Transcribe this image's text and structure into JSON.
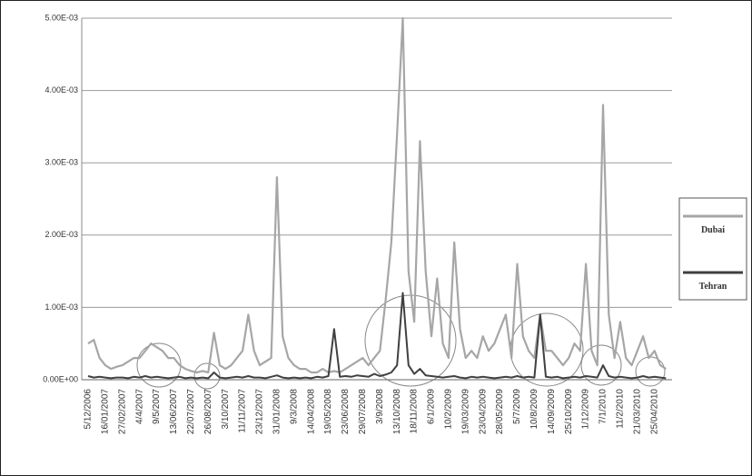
{
  "chart_data": {
    "type": "line",
    "categories": [
      "5/12/2006",
      null,
      null,
      "16/01/2007",
      null,
      null,
      "27/02/2007",
      null,
      null,
      "4/4/2007",
      null,
      null,
      "9/5/2007",
      null,
      null,
      "13/06/2007",
      null,
      null,
      "22/07/2007",
      null,
      null,
      "26/08/2007",
      null,
      null,
      "3/10/2007",
      null,
      null,
      "11/11/2007",
      null,
      null,
      "23/12/2007",
      null,
      null,
      "31/01/2008",
      null,
      null,
      "9/3/2008",
      null,
      null,
      "14/04/2008",
      null,
      null,
      "19/05/2008",
      null,
      null,
      "23/06/2008",
      null,
      null,
      "29/07/2008",
      null,
      null,
      "3/9/2008",
      null,
      null,
      "13/10/2008",
      null,
      null,
      "18/11/2008",
      null,
      null,
      "6/1/2009",
      null,
      null,
      "10/2/2009",
      null,
      null,
      "19/03/2009",
      null,
      null,
      "23/04/2009",
      null,
      null,
      "28/05/2009",
      null,
      null,
      "5/7/2009",
      null,
      null,
      "10/8/2009",
      null,
      null,
      "14/09/2009",
      null,
      null,
      "25/10/2009",
      null,
      null,
      "1/12/2009",
      null,
      null,
      "7/1/2010",
      null,
      null,
      "11/2/2010",
      null,
      null,
      "21/03/2010",
      null,
      null,
      "25/04/2010",
      null,
      null
    ],
    "series": [
      {
        "name": "Dubai",
        "color": "#a6a6a6",
        "values": [
          0.0005,
          0.00055,
          0.0003,
          0.0002,
          0.00015,
          0.00018,
          0.0002,
          0.00025,
          0.0003,
          0.0003,
          0.0004,
          0.0005,
          0.00045,
          0.0004,
          0.0003,
          0.0003,
          0.0002,
          0.00015,
          0.00012,
          0.0001,
          0.00012,
          0.0001,
          0.00065,
          0.0002,
          0.00015,
          0.0002,
          0.0003,
          0.0004,
          0.0009,
          0.0004,
          0.0002,
          0.00025,
          0.0003,
          0.0028,
          0.0006,
          0.0003,
          0.0002,
          0.00015,
          0.00015,
          0.0001,
          0.0001,
          0.00015,
          0.0001,
          0.00012,
          0.0001,
          0.00015,
          0.0002,
          0.00025,
          0.0003,
          0.0002,
          0.0003,
          0.0004,
          0.0011,
          0.0019,
          0.0034,
          0.005,
          0.0015,
          0.0008,
          0.0033,
          0.0015,
          0.0006,
          0.0014,
          0.0005,
          0.0003,
          0.0019,
          0.0007,
          0.0003,
          0.0004,
          0.0003,
          0.0006,
          0.0004,
          0.0005,
          0.0007,
          0.0009,
          0.0003,
          0.0016,
          0.0006,
          0.0004,
          0.0003,
          0.0009,
          0.0004,
          0.0004,
          0.0003,
          0.0002,
          0.0003,
          0.0005,
          0.0004,
          0.0016,
          0.0004,
          0.0002,
          0.0038,
          0.0009,
          0.0003,
          0.0008,
          0.0003,
          0.0002,
          0.0004,
          0.0006,
          0.0003,
          0.0004,
          0.0002,
          0.00015
        ]
      },
      {
        "name": "Tehran",
        "color": "#404040",
        "values": [
          5e-05,
          3e-05,
          4e-05,
          3e-05,
          2e-05,
          3e-05,
          3e-05,
          2e-05,
          4e-05,
          3e-05,
          5e-05,
          3e-05,
          4e-05,
          3e-05,
          2e-05,
          3e-05,
          4e-05,
          2e-05,
          3e-05,
          2e-05,
          3e-05,
          2e-05,
          0.0001,
          3e-05,
          2e-05,
          3e-05,
          4e-05,
          3e-05,
          5e-05,
          3e-05,
          3e-05,
          2e-05,
          4e-05,
          6e-05,
          3e-05,
          2e-05,
          3e-05,
          2e-05,
          3e-05,
          2e-05,
          4e-05,
          3e-05,
          5e-05,
          0.0007,
          4e-05,
          5e-05,
          4e-05,
          6e-05,
          5e-05,
          4e-05,
          8e-05,
          5e-05,
          7e-05,
          0.0001,
          0.0002,
          0.0012,
          0.0002,
          8e-05,
          0.00015,
          6e-05,
          5e-05,
          4e-05,
          3e-05,
          4e-05,
          5e-05,
          3e-05,
          2e-05,
          4e-05,
          3e-05,
          4e-05,
          3e-05,
          2e-05,
          3e-05,
          4e-05,
          3e-05,
          5e-05,
          3e-05,
          4e-05,
          3e-05,
          0.0009,
          4e-05,
          3e-05,
          4e-05,
          2e-05,
          3e-05,
          4e-05,
          3e-05,
          5e-05,
          4e-05,
          3e-05,
          0.0002,
          5e-05,
          3e-05,
          4e-05,
          3e-05,
          2e-05,
          3e-05,
          5e-05,
          3e-05,
          4e-05,
          3e-05,
          2e-05
        ]
      }
    ],
    "ylim": [
      0,
      0.005
    ],
    "yticks": [
      {
        "value": 0,
        "label": "0.00E+00"
      },
      {
        "value": 0.001,
        "label": "1.00E-03"
      },
      {
        "value": 0.002,
        "label": "2.00E-03"
      },
      {
        "value": 0.003,
        "label": "3.00E-03"
      },
      {
        "value": 0.004,
        "label": "4.00E-03"
      },
      {
        "value": 0.005,
        "label": "5.00E-03"
      }
    ],
    "grid": true,
    "legend": "right"
  }
}
